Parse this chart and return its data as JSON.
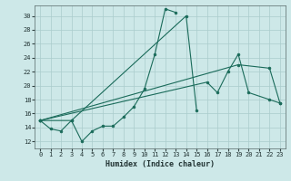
{
  "xlabel": "Humidex (Indice chaleur)",
  "bg_color": "#cde8e8",
  "grid_color": "#aacccc",
  "line_color": "#1a6b5a",
  "xlim": [
    -0.5,
    23.5
  ],
  "ylim": [
    11.0,
    31.5
  ],
  "xticks": [
    0,
    1,
    2,
    3,
    4,
    5,
    6,
    7,
    8,
    9,
    10,
    11,
    12,
    13,
    14,
    15,
    16,
    17,
    18,
    19,
    20,
    21,
    22,
    23
  ],
  "yticks": [
    12,
    14,
    16,
    18,
    20,
    22,
    24,
    26,
    28,
    30
  ],
  "series": [
    {
      "x": [
        0,
        1,
        2,
        3,
        4,
        5,
        6,
        7,
        8,
        9,
        10,
        11,
        12,
        13
      ],
      "y": [
        15.0,
        13.8,
        13.5,
        15.0,
        12.0,
        13.5,
        14.2,
        14.2,
        15.5,
        17.0,
        19.5,
        24.5,
        31.0,
        30.5
      ]
    },
    {
      "x": [
        0,
        3,
        14,
        15
      ],
      "y": [
        15.0,
        15.0,
        30.0,
        16.5
      ]
    },
    {
      "x": [
        0,
        16,
        17,
        18,
        19,
        20,
        22,
        23
      ],
      "y": [
        15.0,
        20.5,
        19.0,
        22.0,
        24.5,
        19.0,
        18.0,
        17.5
      ]
    },
    {
      "x": [
        0,
        19,
        22,
        23
      ],
      "y": [
        15.0,
        23.0,
        22.5,
        17.5
      ]
    }
  ]
}
